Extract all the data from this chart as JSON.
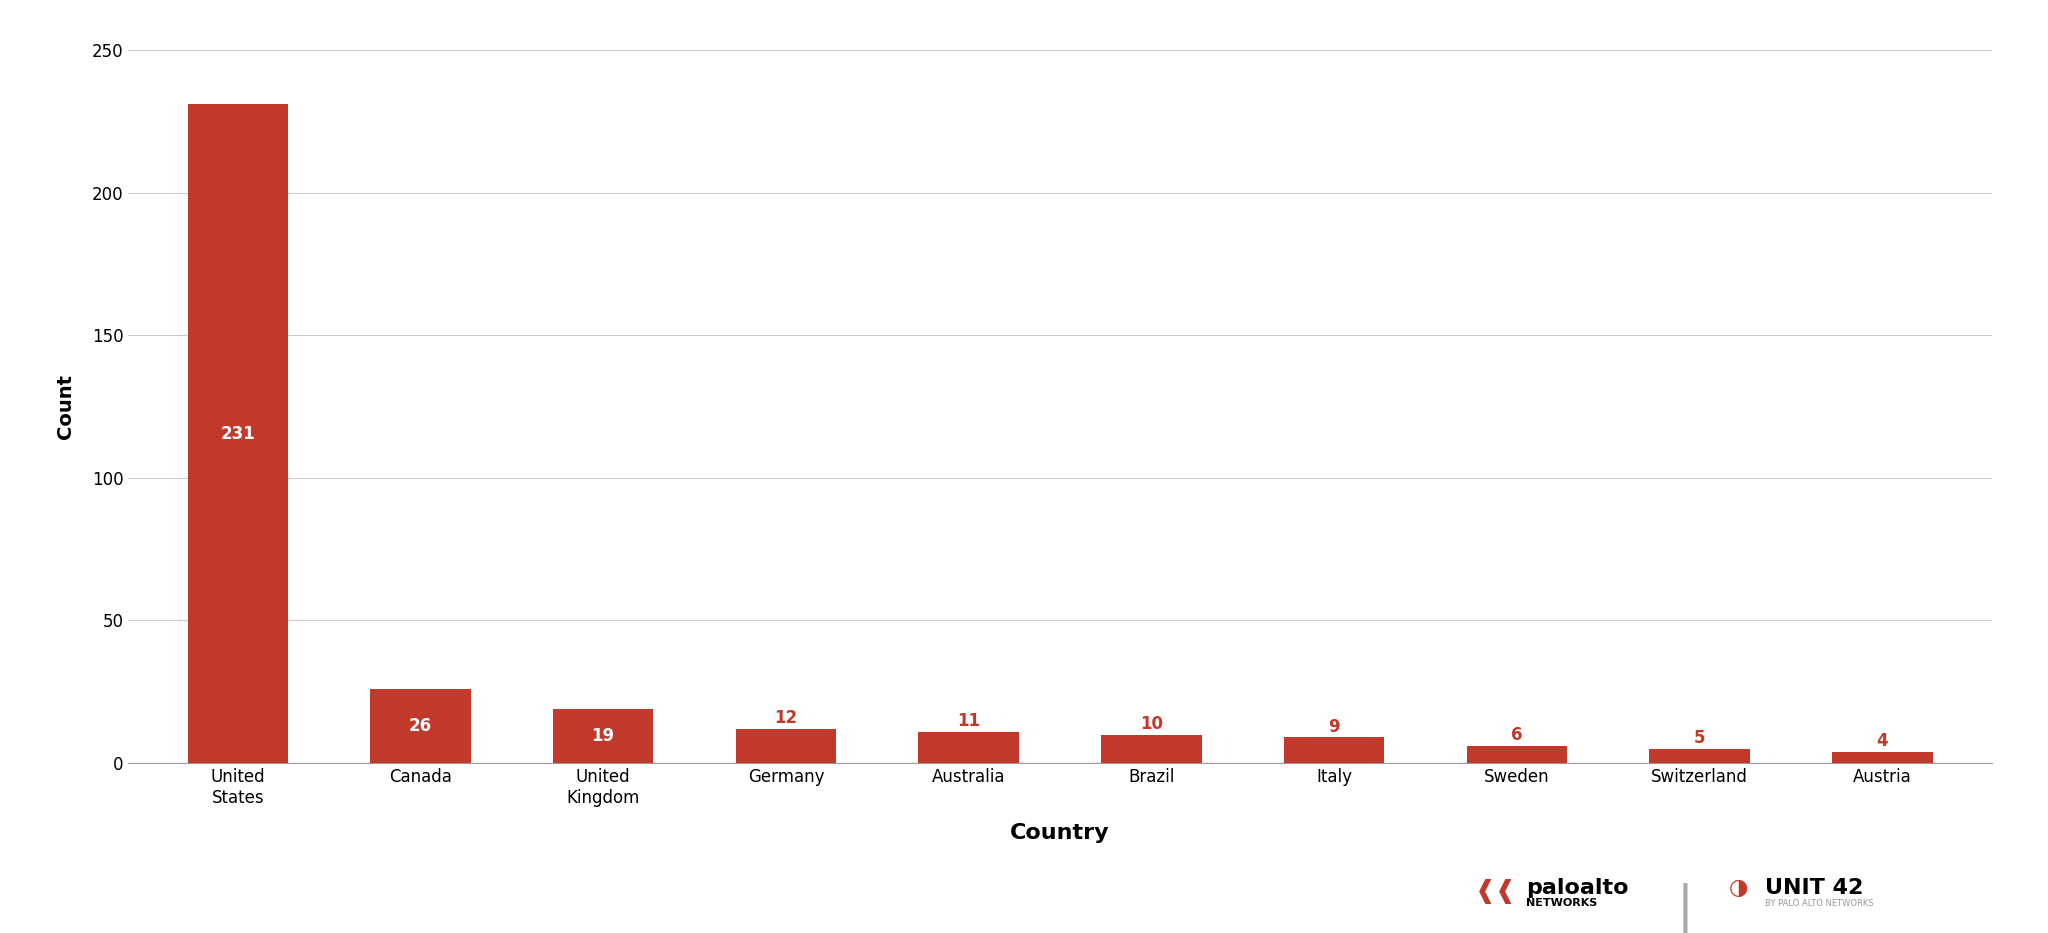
{
  "categories": [
    "United\nStates",
    "Canada",
    "United\nKingdom",
    "Germany",
    "Australia",
    "Brazil",
    "Italy",
    "Sweden",
    "Switzerland",
    "Austria"
  ],
  "values": [
    231,
    26,
    19,
    12,
    11,
    10,
    9,
    6,
    5,
    4
  ],
  "bar_color": "#C0392B",
  "bar_color_dark": "#A93226",
  "label_color_white": "#FFFFFF",
  "label_color_red": "#C0392B",
  "xlabel": "Country",
  "ylabel": "Count",
  "ylim": [
    0,
    250
  ],
  "yticks": [
    0,
    50,
    100,
    150,
    200,
    250
  ],
  "title": "",
  "background_color": "#FFFFFF",
  "grid_color": "#CCCCCC",
  "xlabel_fontsize": 16,
  "ylabel_fontsize": 14,
  "tick_fontsize": 12,
  "label_fontsize": 12,
  "paloalto_text": "paloalto",
  "networks_text": "NETWORKS",
  "unit42_text": "UNIT 42"
}
